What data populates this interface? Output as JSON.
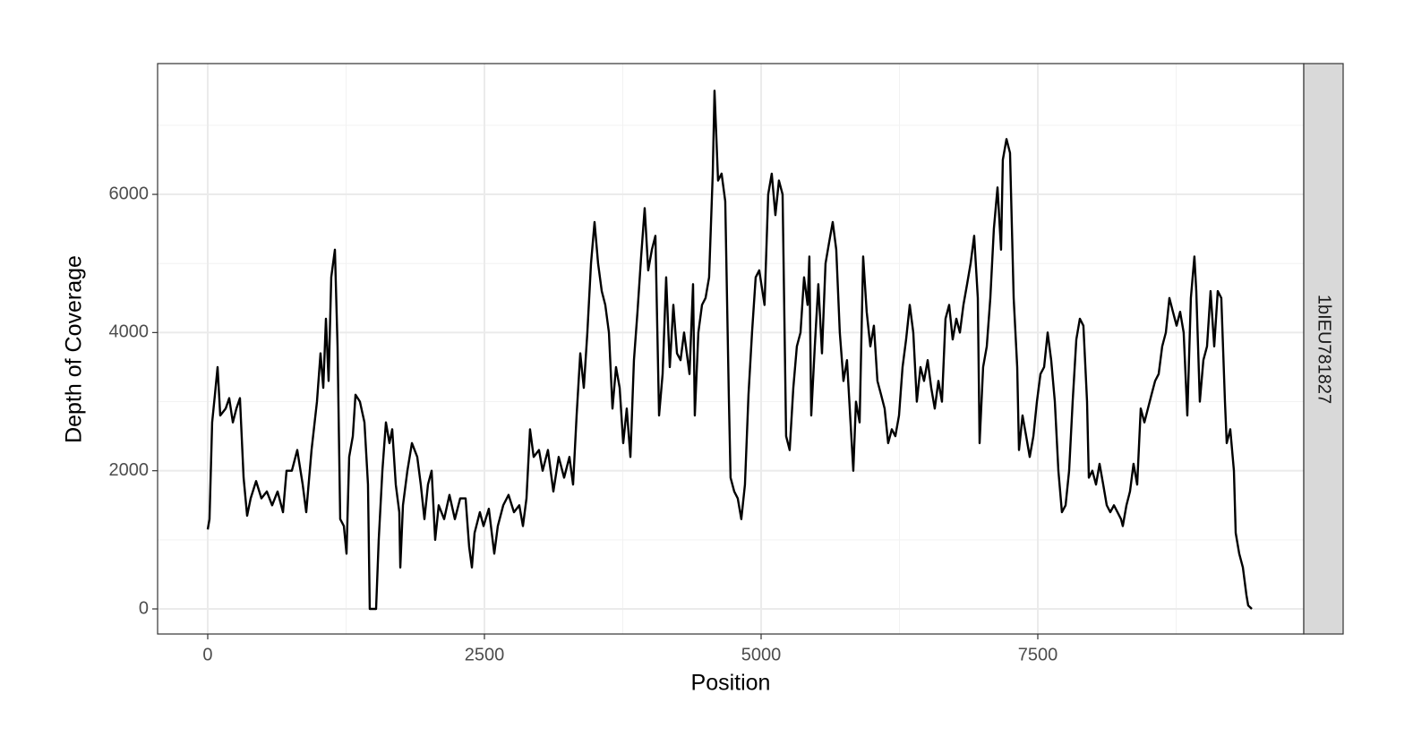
{
  "chart_data": {
    "type": "line",
    "x_label": "Position",
    "y_label": "Depth of Coverage",
    "facet_label": "1bIEU781827",
    "xlim": [
      -453,
      9903
    ],
    "ylim": [
      -363,
      7893
    ],
    "xticks": [
      0,
      2500,
      5000,
      7500
    ],
    "yticks": [
      0,
      2000,
      4000,
      6000
    ],
    "grid": true,
    "color": "#000000",
    "x": [
      0,
      16,
      40,
      65,
      89,
      113,
      162,
      194,
      227,
      259,
      291,
      324,
      356,
      388,
      437,
      485,
      534,
      582,
      631,
      680,
      712,
      760,
      809,
      858,
      890,
      938,
      987,
      1019,
      1044,
      1068,
      1092,
      1116,
      1149,
      1173,
      1197,
      1230,
      1254,
      1278,
      1311,
      1335,
      1375,
      1416,
      1448,
      1464,
      1521,
      1545,
      1578,
      1610,
      1642,
      1667,
      1699,
      1731,
      1740,
      1764,
      1804,
      1845,
      1893,
      1925,
      1958,
      1990,
      2023,
      2055,
      2087,
      2136,
      2184,
      2233,
      2281,
      2330,
      2362,
      2387,
      2411,
      2459,
      2492,
      2540,
      2589,
      2621,
      2670,
      2718,
      2767,
      2815,
      2848,
      2880,
      2912,
      2945,
      2993,
      3026,
      3074,
      3123,
      3171,
      3220,
      3268,
      3301,
      3333,
      3366,
      3398,
      3430,
      3463,
      3495,
      3527,
      3560,
      3592,
      3625,
      3657,
      3689,
      3722,
      3754,
      3786,
      3819,
      3851,
      3883,
      3916,
      3948,
      3980,
      4013,
      4045,
      4078,
      4110,
      4142,
      4175,
      4207,
      4240,
      4272,
      4304,
      4353,
      4385,
      4401,
      4433,
      4466,
      4498,
      4530,
      4563,
      4579,
      4611,
      4643,
      4676,
      4708,
      4724,
      4757,
      4789,
      4821,
      4854,
      4886,
      4918,
      4951,
      4983,
      5031,
      5064,
      5096,
      5129,
      5161,
      5194,
      5226,
      5258,
      5291,
      5323,
      5356,
      5388,
      5420,
      5436,
      5453,
      5485,
      5517,
      5550,
      5582,
      5614,
      5647,
      5679,
      5711,
      5744,
      5776,
      5808,
      5833,
      5857,
      5890,
      5922,
      5954,
      5987,
      6019,
      6051,
      6084,
      6116,
      6148,
      6181,
      6213,
      6246,
      6278,
      6310,
      6343,
      6375,
      6407,
      6440,
      6472,
      6505,
      6537,
      6569,
      6602,
      6634,
      6666,
      6699,
      6731,
      6764,
      6796,
      6828,
      6861,
      6893,
      6925,
      6958,
      6974,
      7006,
      7039,
      7071,
      7103,
      7136,
      7168,
      7184,
      7217,
      7249,
      7282,
      7314,
      7330,
      7362,
      7395,
      7427,
      7460,
      7492,
      7524,
      7557,
      7589,
      7621,
      7654,
      7686,
      7718,
      7751,
      7783,
      7815,
      7848,
      7880,
      7912,
      7945,
      7961,
      7993,
      8026,
      8058,
      8091,
      8123,
      8155,
      8188,
      8220,
      8252,
      8268,
      8301,
      8333,
      8365,
      8398,
      8430,
      8463,
      8495,
      8527,
      8560,
      8592,
      8624,
      8657,
      8689,
      8721,
      8754,
      8786,
      8818,
      8851,
      8883,
      8915,
      8932,
      8964,
      8996,
      9029,
      9061,
      9094,
      9126,
      9158,
      9191,
      9207,
      9239,
      9272,
      9288,
      9320,
      9353,
      9385,
      9401,
      9434
    ],
    "values": [
      1150,
      1300,
      2700,
      3100,
      3500,
      2800,
      2900,
      3050,
      2700,
      2900,
      3050,
      1900,
      1350,
      1600,
      1850,
      1600,
      1700,
      1500,
      1700,
      1400,
      2000,
      2000,
      2300,
      1800,
      1400,
      2300,
      3000,
      3700,
      3200,
      4200,
      3300,
      4800,
      5200,
      3800,
      1300,
      1200,
      800,
      2200,
      2500,
      3100,
      3000,
      2700,
      1800,
      0,
      0,
      1000,
      2000,
      2700,
      2400,
      2600,
      1800,
      1400,
      600,
      1500,
      2000,
      2400,
      2200,
      1800,
      1300,
      1800,
      2000,
      1000,
      1500,
      1300,
      1650,
      1300,
      1600,
      1600,
      900,
      600,
      1100,
      1400,
      1200,
      1450,
      800,
      1200,
      1500,
      1650,
      1400,
      1500,
      1200,
      1600,
      2600,
      2200,
      2300,
      2000,
      2300,
      1700,
      2200,
      1900,
      2200,
      1800,
      2800,
      3700,
      3200,
      4000,
      5000,
      5600,
      5000,
      4600,
      4400,
      4000,
      2900,
      3500,
      3200,
      2400,
      2900,
      2200,
      3600,
      4300,
      5100,
      5800,
      4900,
      5200,
      5400,
      2800,
      3400,
      4800,
      3500,
      4400,
      3700,
      3600,
      4000,
      3400,
      4700,
      2800,
      4000,
      4400,
      4500,
      4800,
      6300,
      7500,
      6200,
      6300,
      5900,
      3100,
      1900,
      1700,
      1600,
      1300,
      1800,
      3100,
      4000,
      4800,
      4900,
      4400,
      6000,
      6300,
      5700,
      6200,
      6000,
      2500,
      2300,
      3200,
      3800,
      4000,
      4800,
      4400,
      5100,
      2800,
      3800,
      4700,
      3700,
      5000,
      5300,
      5600,
      5200,
      4000,
      3300,
      3600,
      2700,
      2000,
      3000,
      2700,
      5100,
      4300,
      3800,
      4100,
      3300,
      3100,
      2900,
      2400,
      2600,
      2500,
      2800,
      3500,
      3900,
      4400,
      4000,
      3000,
      3500,
      3300,
      3600,
      3200,
      2900,
      3300,
      3000,
      4200,
      4400,
      3900,
      4200,
      4000,
      4400,
      4700,
      5000,
      5400,
      4500,
      2400,
      3500,
      3800,
      4500,
      5500,
      6100,
      5200,
      6500,
      6800,
      6600,
      4500,
      3500,
      2300,
      2800,
      2500,
      2200,
      2500,
      3000,
      3400,
      3500,
      4000,
      3600,
      3000,
      2000,
      1400,
      1500,
      2000,
      3000,
      3900,
      4200,
      4100,
      3000,
      1900,
      2000,
      1800,
      2100,
      1800,
      1500,
      1400,
      1500,
      1400,
      1300,
      1200,
      1500,
      1700,
      2100,
      1800,
      2900,
      2700,
      2900,
      3100,
      3300,
      3400,
      3800,
      4000,
      4500,
      4300,
      4100,
      4300,
      4000,
      2800,
      4500,
      5100,
      4600,
      3000,
      3600,
      3800,
      4600,
      3800,
      4600,
      4500,
      3000,
      2400,
      2600,
      2000,
      1100,
      800,
      600,
      200,
      50,
      0
    ]
  }
}
